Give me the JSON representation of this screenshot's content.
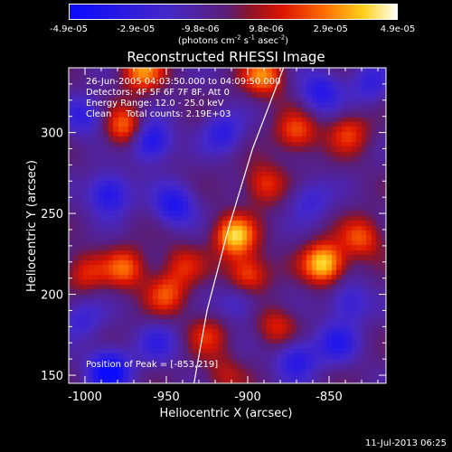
{
  "chart_data": {
    "type": "heatmap",
    "title": "Reconstructed RHESSI Image",
    "xlabel": "Heliocentric X (arcsec)",
    "ylabel": "Heliocentric Y (arcsec)",
    "xlim": [
      -1010,
      -815
    ],
    "ylim": [
      145,
      340
    ],
    "x_ticks": [
      "-1000",
      "-950",
      "-900",
      "-850"
    ],
    "x_tick_values": [
      -1000,
      -950,
      -900,
      -850
    ],
    "y_ticks": [
      "150",
      "200",
      "250",
      "300"
    ],
    "y_tick_values": [
      150,
      200,
      250,
      300
    ],
    "colorbar": {
      "ticks": [
        "-4.9e-05",
        "-2.9e-05",
        "-9.8e-06",
        "9.8e-06",
        "2.9e-05",
        "4.9e-05"
      ],
      "tick_values": [
        -4.9e-05,
        -2.9e-05,
        -9.8e-06,
        9.8e-06,
        2.9e-05,
        4.9e-05
      ],
      "range": [
        -4.9e-05,
        4.9e-05
      ],
      "unit": "(photons cm-2 s-1 asec-2)"
    },
    "annotations": {
      "time_range": "26-Jun-2005 04:03:50.000 to 04:09:50.000",
      "detectors": "Detectors: 4F 5F 6F 7F 8F, Att 0",
      "energy": "Energy Range: 12.0 - 25.0 keV",
      "clean": "Clean     Total counts: 2.19E+03",
      "peak": "Position of Peak = [-853,219]"
    },
    "peak": {
      "x": -853,
      "y": 219
    },
    "limb_line_points": [
      [
        -933,
        145
      ],
      [
        -925,
        190
      ],
      [
        -912,
        240
      ],
      [
        -897,
        290
      ],
      [
        -878,
        340
      ]
    ],
    "bright_sources": [
      {
        "x": -908,
        "y": 236,
        "value": 4.5e-05
      },
      {
        "x": -853,
        "y": 219,
        "value": 4.9e-05
      },
      {
        "x": -975,
        "y": 216,
        "value": 3e-05
      },
      {
        "x": -890,
        "y": 268,
        "value": 2.6e-05
      },
      {
        "x": -890,
        "y": 335,
        "value": 3.5e-05
      },
      {
        "x": -965,
        "y": 338,
        "value": 3.5e-05
      },
      {
        "x": -870,
        "y": 300,
        "value": 2.9e-05
      },
      {
        "x": -900,
        "y": 212,
        "value": 3.2e-05
      },
      {
        "x": -950,
        "y": 200,
        "value": 2.6e-05
      },
      {
        "x": -925,
        "y": 175,
        "value": 2e-05
      },
      {
        "x": -975,
        "y": 303,
        "value": 3.5e-05
      },
      {
        "x": -830,
        "y": 235,
        "value": 2.8e-05
      },
      {
        "x": -838,
        "y": 300,
        "value": 2.4e-05
      },
      {
        "x": -882,
        "y": 180,
        "value": 2.2e-05
      },
      {
        "x": -1000,
        "y": 213,
        "value": 2.2e-05
      },
      {
        "x": -940,
        "y": 218,
        "value": 2e-05
      },
      {
        "x": -915,
        "y": 150,
        "value": 1.6e-05
      }
    ],
    "dark_sources": [
      {
        "x": -960,
        "y": 295,
        "value": -4e-05
      },
      {
        "x": -985,
        "y": 262,
        "value": -3.5e-05
      },
      {
        "x": -945,
        "y": 255,
        "value": -3.3e-05
      },
      {
        "x": -855,
        "y": 325,
        "value": -3e-05
      },
      {
        "x": -838,
        "y": 195,
        "value": -2.4e-05
      },
      {
        "x": -870,
        "y": 160,
        "value": -3e-05
      },
      {
        "x": -985,
        "y": 153,
        "value": -4.6e-05
      },
      {
        "x": -1000,
        "y": 310,
        "value": -2.4e-05
      },
      {
        "x": -915,
        "y": 300,
        "value": -2.6e-05
      },
      {
        "x": -845,
        "y": 170,
        "value": -2.6e-05
      },
      {
        "x": -955,
        "y": 170,
        "value": -2e-05
      },
      {
        "x": -905,
        "y": 195,
        "value": -2e-05
      },
      {
        "x": -862,
        "y": 258,
        "value": -2e-05
      },
      {
        "x": -825,
        "y": 330,
        "value": -2.2e-05
      },
      {
        "x": -1002,
        "y": 185,
        "value": -2e-05
      }
    ]
  },
  "timestamp": "11-Jul-2013 06:25"
}
